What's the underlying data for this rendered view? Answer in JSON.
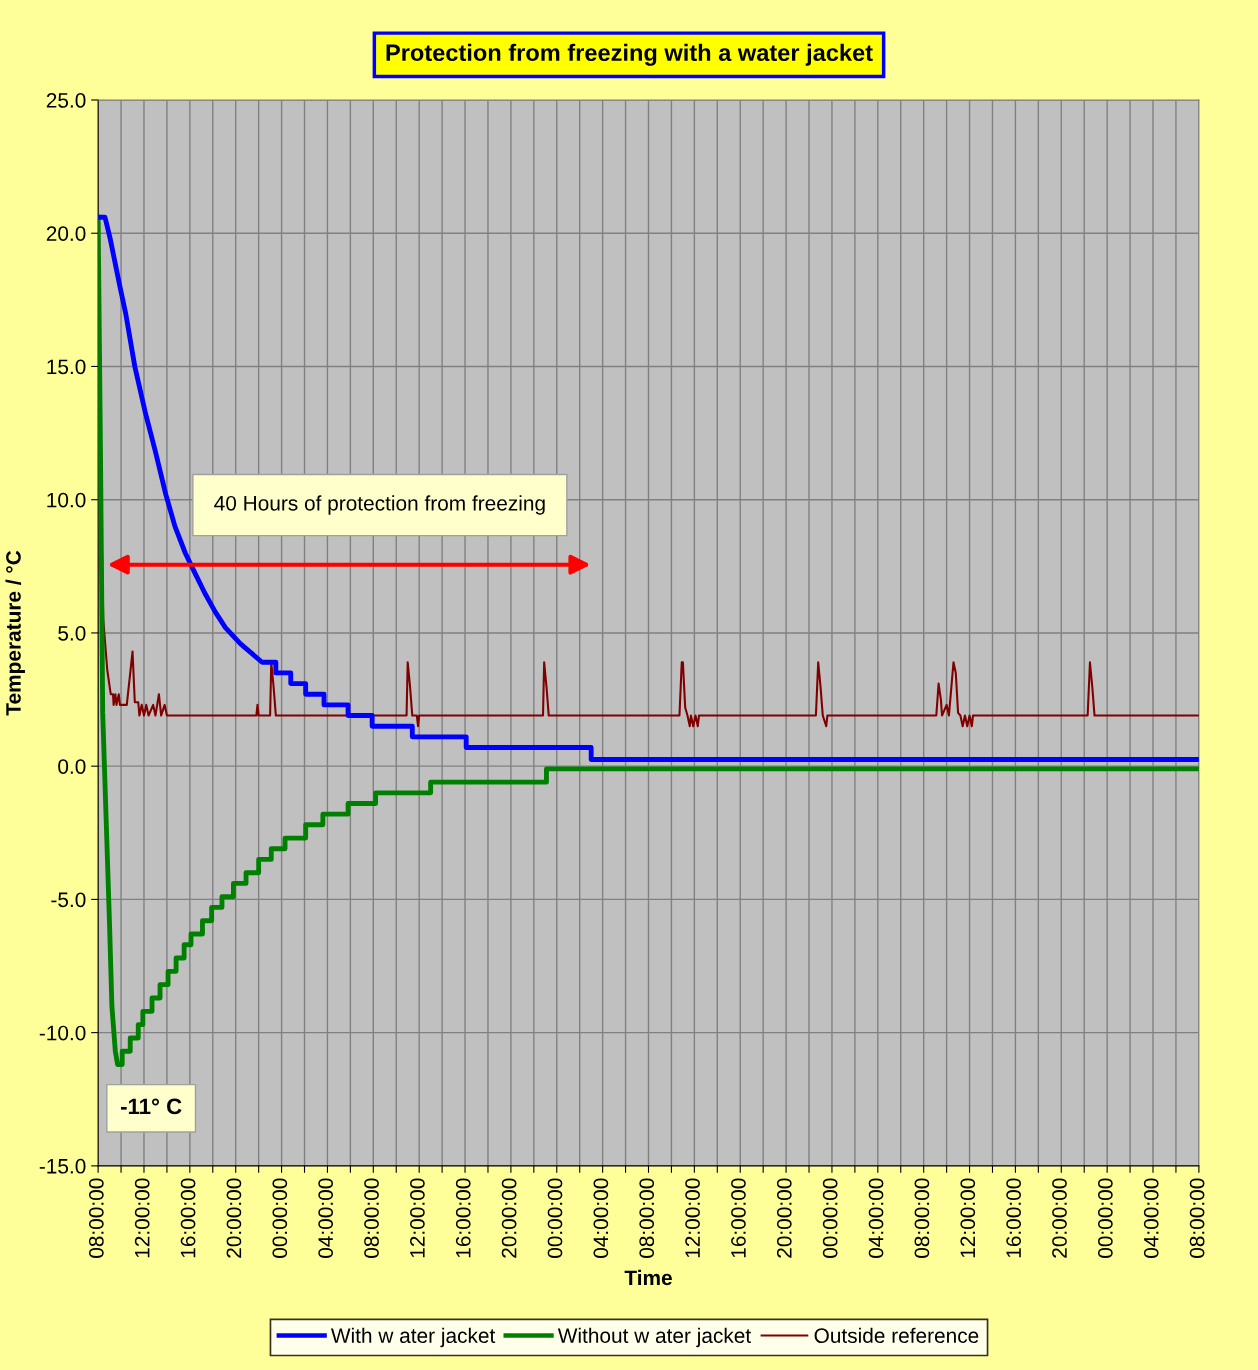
{
  "chart_data": {
    "type": "line",
    "title": "Protection from freezing with a water jacket",
    "xlabel": "Time",
    "ylabel": "Temperature / °C",
    "annotations": [
      "40 Hours of protection from freezing",
      "-11° C"
    ],
    "xlim": [
      "2000-01-01T08:00",
      "2000-01-05T08:00"
    ],
    "ylim": [
      -15,
      25
    ],
    "xticks": [
      {
        "value": "2000-01-01T08:00",
        "label": "08:00:00"
      },
      {
        "value": "2000-01-01T10:00",
        "label": null
      },
      {
        "value": "2000-01-01T12:00",
        "label": "12:00:00"
      },
      {
        "value": "2000-01-01T14:00",
        "label": null
      },
      {
        "value": "2000-01-01T16:00",
        "label": "16:00:00"
      },
      {
        "value": "2000-01-01T18:00",
        "label": null
      },
      {
        "value": "2000-01-01T20:00",
        "label": "20:00:00"
      },
      {
        "value": "2000-01-01T22:00",
        "label": null
      },
      {
        "value": "2000-01-02T00:00",
        "label": "00:00:00"
      },
      {
        "value": "2000-01-02T02:00",
        "label": null
      },
      {
        "value": "2000-01-02T04:00",
        "label": "04:00:00"
      },
      {
        "value": "2000-01-02T06:00",
        "label": null
      },
      {
        "value": "2000-01-02T08:00",
        "label": "08:00:00"
      },
      {
        "value": "2000-01-02T10:00",
        "label": null
      },
      {
        "value": "2000-01-02T12:00",
        "label": "12:00:00"
      },
      {
        "value": "2000-01-02T14:00",
        "label": null
      },
      {
        "value": "2000-01-02T16:00",
        "label": "16:00:00"
      },
      {
        "value": "2000-01-02T18:00",
        "label": null
      },
      {
        "value": "2000-01-02T20:00",
        "label": "20:00:00"
      },
      {
        "value": "2000-01-02T22:00",
        "label": null
      },
      {
        "value": "2000-01-03T00:00",
        "label": "00:00:00"
      },
      {
        "value": "2000-01-03T02:00",
        "label": null
      },
      {
        "value": "2000-01-03T04:00",
        "label": "04:00:00"
      },
      {
        "value": "2000-01-03T06:00",
        "label": null
      },
      {
        "value": "2000-01-03T08:00",
        "label": "08:00:00"
      },
      {
        "value": "2000-01-03T10:00",
        "label": null
      },
      {
        "value": "2000-01-03T12:00",
        "label": "12:00:00"
      },
      {
        "value": "2000-01-03T14:00",
        "label": null
      },
      {
        "value": "2000-01-03T16:00",
        "label": "16:00:00"
      },
      {
        "value": "2000-01-03T18:00",
        "label": null
      },
      {
        "value": "2000-01-03T20:00",
        "label": "20:00:00"
      },
      {
        "value": "2000-01-03T22:00",
        "label": null
      },
      {
        "value": "2000-01-04T00:00",
        "label": "00:00:00"
      },
      {
        "value": "2000-01-04T02:00",
        "label": null
      },
      {
        "value": "2000-01-04T04:00",
        "label": "04:00:00"
      },
      {
        "value": "2000-01-04T06:00",
        "label": null
      },
      {
        "value": "2000-01-04T08:00",
        "label": "08:00:00"
      },
      {
        "value": "2000-01-04T10:00",
        "label": null
      },
      {
        "value": "2000-01-04T12:00",
        "label": "12:00:00"
      },
      {
        "value": "2000-01-04T14:00",
        "label": null
      },
      {
        "value": "2000-01-04T16:00",
        "label": "16:00:00"
      },
      {
        "value": "2000-01-04T18:00",
        "label": null
      },
      {
        "value": "2000-01-04T20:00",
        "label": "20:00:00"
      },
      {
        "value": "2000-01-04T22:00",
        "label": null
      },
      {
        "value": "2000-01-05T00:00",
        "label": "00:00:00"
      },
      {
        "value": "2000-01-05T02:00",
        "label": null
      },
      {
        "value": "2000-01-05T04:00",
        "label": "04:00:00"
      },
      {
        "value": "2000-01-05T06:00",
        "label": null
      },
      {
        "value": "2000-01-05T08:00",
        "label": "08:00:00"
      }
    ],
    "yticks": [
      {
        "value": -15,
        "label": "-15.0"
      },
      {
        "value": -10,
        "label": "-10.0"
      },
      {
        "value": -5,
        "label": "-5.0"
      },
      {
        "value": 0,
        "label": "0.0"
      },
      {
        "value": 5,
        "label": "5.0"
      },
      {
        "value": 10,
        "label": "10.0"
      },
      {
        "value": 15,
        "label": "15.0"
      },
      {
        "value": 20,
        "label": "20.0"
      },
      {
        "value": 25,
        "label": "25.0"
      }
    ],
    "grid": true,
    "legend": "bottom",
    "line_style": "solid",
    "marker": "none",
    "series": [
      {
        "name": "With w ater jacket",
        "color": "#0000ff",
        "x": [
          "2000-01-01T08:00",
          "2000-01-01T08:36",
          "2000-01-01T09:03",
          "2000-01-01T09:54",
          "2000-01-01T10:24",
          "2000-01-01T11:12",
          "2000-01-01T12:06",
          "2000-01-01T13:00",
          "2000-01-01T13:54",
          "2000-01-01T14:42",
          "2000-01-01T15:36",
          "2000-01-01T16:30",
          "2000-01-01T17:18",
          "2000-01-01T18:12",
          "2000-01-01T19:06",
          "2000-01-01T20:24",
          "2000-01-01T22:18",
          "2000-01-01T23:30",
          "2000-01-01T23:30",
          "2000-01-02T00:48",
          "2000-01-02T00:48",
          "2000-01-02T02:06",
          "2000-01-02T02:06",
          "2000-01-02T03:42",
          "2000-01-02T03:42",
          "2000-01-02T05:48",
          "2000-01-02T05:48",
          "2000-01-02T07:54",
          "2000-01-02T07:54",
          "2000-01-02T11:24",
          "2000-01-02T11:24",
          "2000-01-02T16:06",
          "2000-01-02T16:06",
          "2000-01-03T03:00",
          "2000-01-03T03:00",
          "2000-01-05T08:00"
        ],
        "values": [
          20.6,
          20.6,
          19.8,
          18,
          17,
          15,
          13.3,
          11.8,
          10.2,
          9.0,
          8.0,
          7.2,
          6.5,
          5.8,
          5.2,
          4.6,
          3.9,
          3.9,
          3.5,
          3.5,
          3.1,
          3.1,
          2.7,
          2.7,
          2.3,
          2.3,
          1.9,
          1.9,
          1.5,
          1.5,
          1.1,
          1.1,
          0.7,
          0.7,
          0.25,
          0.25
        ]
      },
      {
        "name": "Without w ater jacket",
        "color": "#008000",
        "x": [
          "2000-01-01T08:00",
          "2000-01-01T08:12",
          "2000-01-01T08:24",
          "2000-01-01T08:42",
          "2000-01-01T09:00",
          "2000-01-01T09:12",
          "2000-01-01T09:30",
          "2000-01-01T09:42",
          "2000-01-01T10:06",
          "2000-01-01T10:06",
          "2000-01-01T10:48",
          "2000-01-01T10:48",
          "2000-01-01T11:30",
          "2000-01-01T11:30",
          "2000-01-01T11:54",
          "2000-01-01T11:54",
          "2000-01-01T12:42",
          "2000-01-01T12:42",
          "2000-01-01T13:24",
          "2000-01-01T13:24",
          "2000-01-01T14:06",
          "2000-01-01T14:06",
          "2000-01-01T14:48",
          "2000-01-01T14:48",
          "2000-01-01T15:30",
          "2000-01-01T15:30",
          "2000-01-01T16:06",
          "2000-01-01T16:06",
          "2000-01-01T17:06",
          "2000-01-01T17:06",
          "2000-01-01T17:54",
          "2000-01-01T17:54",
          "2000-01-01T18:48",
          "2000-01-01T18:48",
          "2000-01-01T19:48",
          "2000-01-01T19:48",
          "2000-01-01T20:54",
          "2000-01-01T20:54",
          "2000-01-01T22:00",
          "2000-01-01T22:00",
          "2000-01-01T23:06",
          "2000-01-01T23:06",
          "2000-01-02T00:18",
          "2000-01-02T00:18",
          "2000-01-02T02:06",
          "2000-01-02T02:06",
          "2000-01-02T03:36",
          "2000-01-02T03:36",
          "2000-01-02T05:48",
          "2000-01-02T05:48",
          "2000-01-02T08:12",
          "2000-01-02T08:12",
          "2000-01-02T13:00",
          "2000-01-02T13:00",
          "2000-01-02T23:06",
          "2000-01-02T23:06",
          "2000-01-05T08:00"
        ],
        "values": [
          20.6,
          12,
          2,
          -2,
          -6,
          -9,
          -10.7,
          -11.2,
          -11.2,
          -10.7,
          -10.7,
          -10.2,
          -10.2,
          -9.7,
          -9.7,
          -9.2,
          -9.2,
          -8.7,
          -8.7,
          -8.2,
          -8.2,
          -7.7,
          -7.7,
          -7.2,
          -7.2,
          -6.7,
          -6.7,
          -6.3,
          -6.3,
          -5.8,
          -5.8,
          -5.3,
          -5.3,
          -4.9,
          -4.9,
          -4.4,
          -4.4,
          -4.0,
          -4.0,
          -3.5,
          -3.5,
          -3.1,
          -3.1,
          -2.7,
          -2.7,
          -2.2,
          -2.2,
          -1.8,
          -1.8,
          -1.4,
          -1.4,
          -1.0,
          -1.0,
          -0.6,
          -0.6,
          -0.1,
          -0.1
        ]
      },
      {
        "name": "Outside reference",
        "color": "#800000",
        "x": [
          "2000-01-01T08:00",
          "2000-01-01T08:15",
          "2000-01-01T08:27",
          "2000-01-01T08:48",
          "2000-01-01T09:06",
          "2000-01-01T09:18",
          "2000-01-01T09:21",
          "2000-01-01T09:30",
          "2000-01-01T09:36",
          "2000-01-01T09:48",
          "2000-01-01T09:54",
          "2000-01-01T10:30",
          "2000-01-01T11:00",
          "2000-01-01T11:12",
          "2000-01-01T11:30",
          "2000-01-01T11:36",
          "2000-01-01T11:48",
          "2000-01-01T12:00",
          "2000-01-01T12:12",
          "2000-01-01T12:24",
          "2000-01-01T12:48",
          "2000-01-01T13:00",
          "2000-01-01T13:18",
          "2000-01-01T13:30",
          "2000-01-01T13:48",
          "2000-01-01T14:00",
          "2000-01-01T21:48",
          "2000-01-01T21:54",
          "2000-01-01T22:00",
          "2000-01-01T23:00",
          "2000-01-01T23:06",
          "2000-01-01T23:18",
          "2000-01-01T23:30",
          "2000-01-02T10:54",
          "2000-01-02T11:00",
          "2000-01-02T11:12",
          "2000-01-02T11:24",
          "2000-01-02T11:48",
          "2000-01-02T11:54",
          "2000-01-02T12:00",
          "2000-01-02T22:48",
          "2000-01-02T22:54",
          "2000-01-02T23:06",
          "2000-01-02T23:18",
          "2000-01-03T10:42",
          "2000-01-03T10:54",
          "2000-01-03T11:00",
          "2000-01-03T11:12",
          "2000-01-03T11:24",
          "2000-01-03T11:36",
          "2000-01-03T11:42",
          "2000-01-03T11:54",
          "2000-01-03T12:06",
          "2000-01-03T12:18",
          "2000-01-03T12:24",
          "2000-01-03T22:36",
          "2000-01-03T22:48",
          "2000-01-03T23:00",
          "2000-01-03T23:12",
          "2000-01-03T23:30",
          "2000-01-03T23:36",
          "2000-01-04T09:06",
          "2000-01-04T09:18",
          "2000-01-04T09:30",
          "2000-01-04T09:36",
          "2000-01-04T10:00",
          "2000-01-04T10:12",
          "2000-01-04T10:36",
          "2000-01-04T10:48",
          "2000-01-04T11:00",
          "2000-01-04T11:12",
          "2000-01-04T11:24",
          "2000-01-04T11:36",
          "2000-01-04T11:48",
          "2000-01-04T12:00",
          "2000-01-04T12:12",
          "2000-01-04T12:18",
          "2000-01-04T22:18",
          "2000-01-04T22:30",
          "2000-01-04T22:42",
          "2000-01-04T22:54",
          "2000-01-05T08:00"
        ],
        "values": [
          20.6,
          10,
          5.5,
          3.6,
          2.7,
          2.7,
          2.3,
          2.7,
          2.3,
          2.7,
          2.3,
          2.3,
          4.3,
          2.4,
          2.4,
          1.9,
          2.3,
          1.9,
          2.3,
          1.9,
          2.3,
          1.9,
          2.7,
          1.9,
          2.3,
          1.9,
          1.9,
          2.3,
          1.9,
          1.9,
          3.9,
          3.0,
          1.9,
          1.9,
          3.9,
          3.0,
          1.9,
          1.9,
          1.5,
          1.9,
          1.9,
          3.9,
          3.0,
          1.9,
          1.9,
          3.9,
          3.9,
          2.2,
          1.9,
          1.5,
          1.9,
          1.5,
          1.9,
          1.5,
          1.9,
          1.9,
          3.9,
          3.0,
          1.9,
          1.5,
          1.9,
          1.9,
          3.1,
          2.5,
          1.9,
          2.3,
          1.9,
          3.9,
          3.5,
          2.0,
          1.9,
          1.5,
          1.9,
          1.5,
          1.9,
          1.5,
          1.9,
          1.9,
          3.9,
          3.0,
          1.9,
          1.9
        ]
      }
    ]
  }
}
